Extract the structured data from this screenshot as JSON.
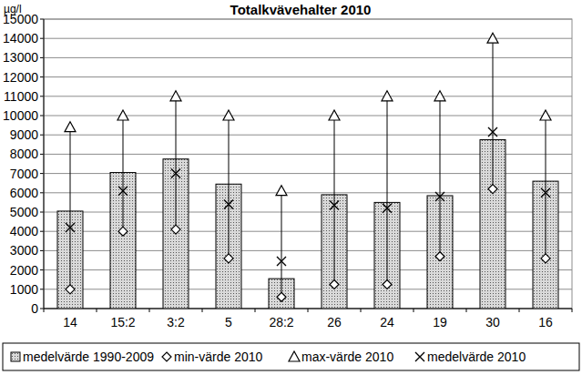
{
  "chart_data": {
    "type": "bar",
    "title": "Totalkvävehalter 2010",
    "y_label": "µg/l",
    "categories": [
      "14",
      "15:2",
      "3:2",
      "5",
      "28:2",
      "26",
      "24",
      "19",
      "30",
      "16"
    ],
    "series": [
      {
        "name": "medelvärde 1990-2009",
        "type": "bar",
        "color": "#d9d9d9",
        "values": [
          5050,
          7050,
          7750,
          6450,
          1550,
          5900,
          5500,
          5850,
          8750,
          6600
        ]
      },
      {
        "name": "min-värde 2010",
        "type": "scatter",
        "marker": "diamond",
        "color": "#000000",
        "values": [
          1000,
          4000,
          4100,
          2600,
          600,
          1250,
          1250,
          2700,
          6200,
          2600
        ]
      },
      {
        "name": "max-värde 2010",
        "type": "scatter",
        "marker": "triangle",
        "color": "#000000",
        "values": [
          9400,
          10000,
          11000,
          10000,
          6100,
          10000,
          11000,
          11000,
          14000,
          10000
        ]
      },
      {
        "name": "medelvärde 2010",
        "type": "scatter",
        "marker": "x",
        "color": "#000000",
        "values": [
          4200,
          6100,
          7000,
          5400,
          2450,
          5350,
          5200,
          5800,
          9150,
          6000
        ]
      }
    ],
    "ylim": [
      0,
      15000
    ],
    "yticks": [
      0,
      1000,
      2000,
      3000,
      4000,
      5000,
      6000,
      7000,
      8000,
      9000,
      10000,
      11000,
      12000,
      13000,
      14000,
      15000
    ],
    "grid": true,
    "legend": "bottom"
  }
}
